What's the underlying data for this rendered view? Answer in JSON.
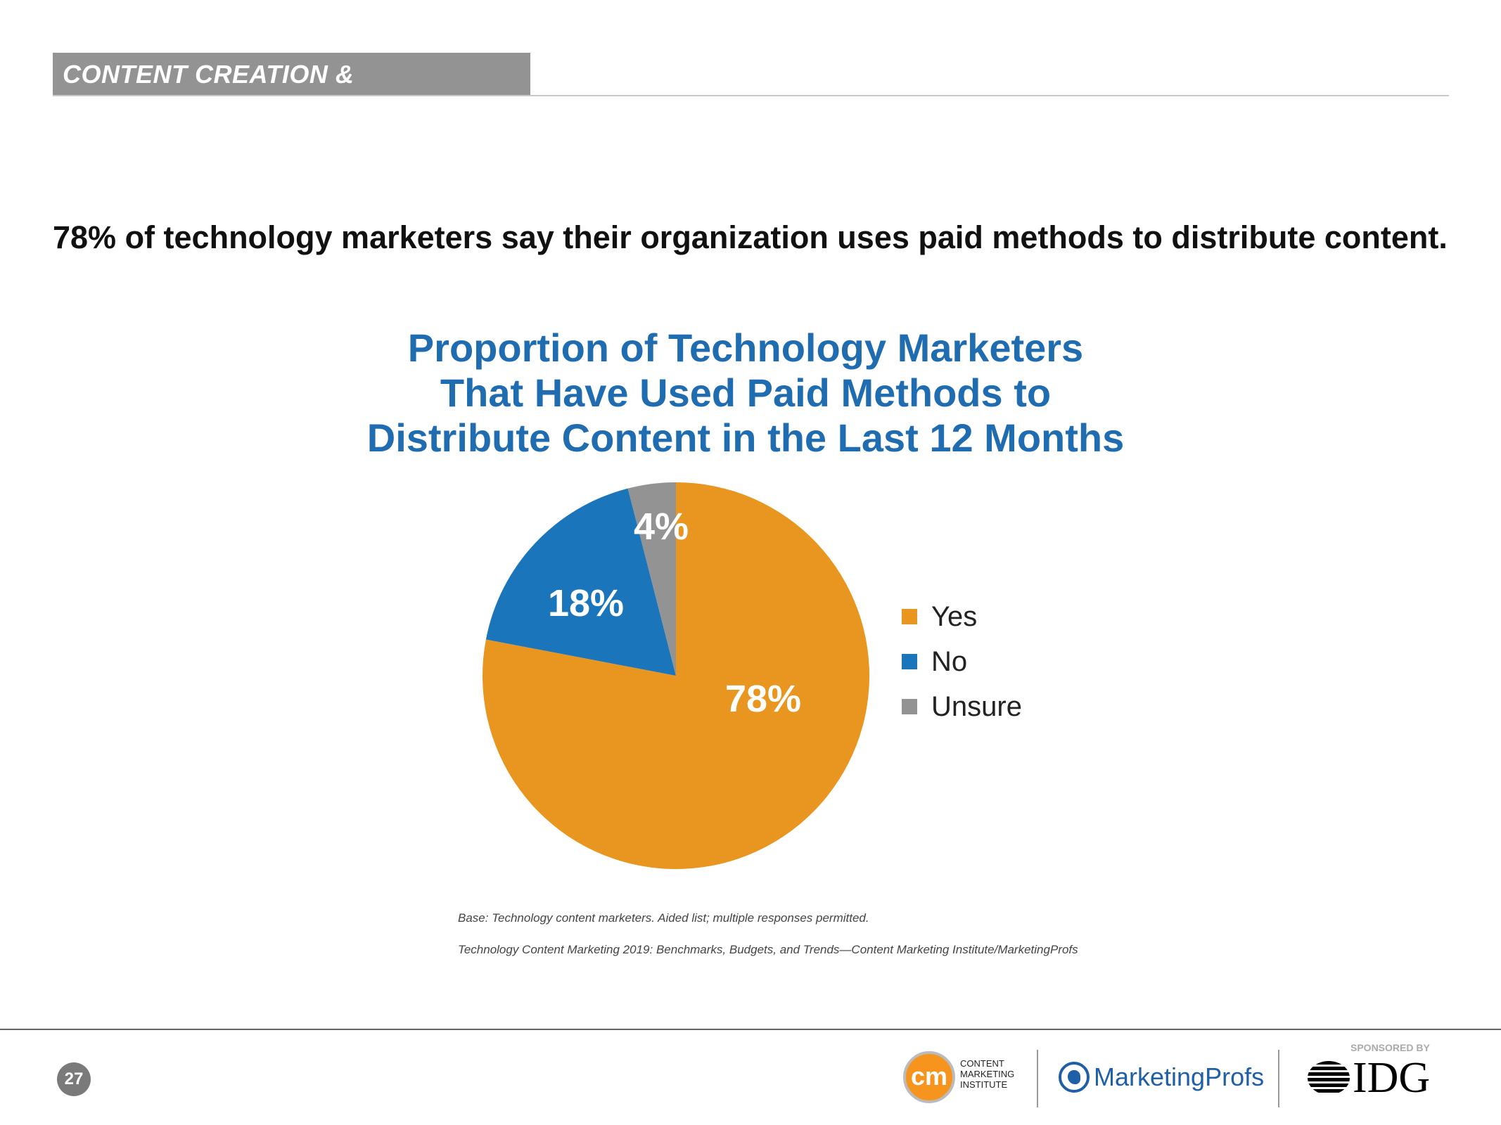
{
  "section_header": "CONTENT CREATION & DISTRIBUTION",
  "headline": "78% of technology marketers say their organization uses paid methods to distribute content.",
  "chart_data": {
    "type": "pie",
    "title": [
      "Proportion of Technology Marketers",
      "That Have Used Paid Methods to",
      "Distribute Content in the Last 12 Months"
    ],
    "categories": [
      "Yes",
      "No",
      "Unsure"
    ],
    "values": [
      78,
      18,
      4
    ],
    "labels": [
      "78%",
      "18%",
      "4%"
    ],
    "colors": [
      "#E8961F",
      "#1B75BB",
      "#939393"
    ],
    "legend_position": "right"
  },
  "notes": {
    "base": "Base: Technology content marketers. Aided list; multiple responses permitted.",
    "source": "Technology Content Marketing 2019: Benchmarks, Budgets, and Trends—Content Marketing Institute/MarketingProfs"
  },
  "footer": {
    "page_number": "27",
    "cmi_logo": "cm",
    "cmi_text": [
      "CONTENT",
      "MARKETING",
      "INSTITUTE"
    ],
    "marketingprofs": "MarketingProfs",
    "sponsored_by": "SPONSORED BY",
    "idg": "IDG"
  }
}
